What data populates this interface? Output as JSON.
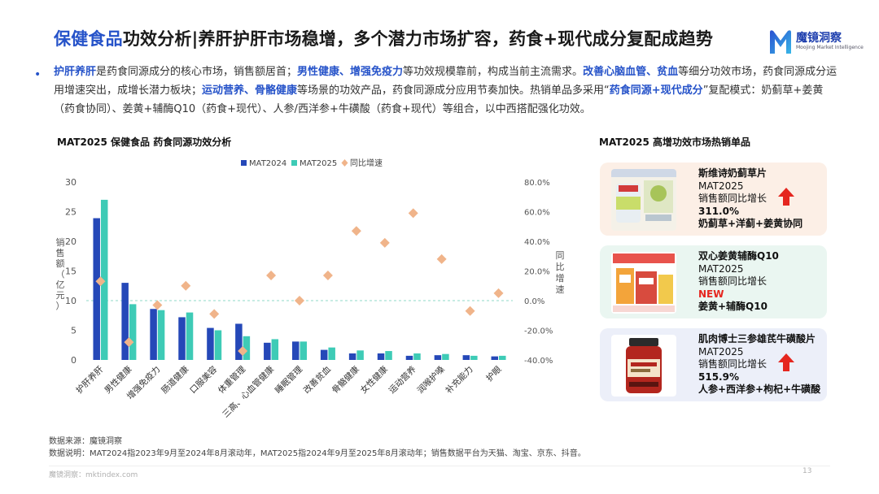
{
  "header": {
    "title_hl": "保健食品",
    "title_rest": "功效分析|养肝护肝市场稳增，多个潜力市场扩容，药食+现代成分复配成趋势",
    "logo_cn": "魔镜洞察",
    "logo_en": "Moojing Market Intelligence"
  },
  "summary": {
    "segments": [
      {
        "t": "护肝养肝",
        "hl": true
      },
      {
        "t": "是药食同源成分的核心市场，销售额居首；",
        "hl": false
      },
      {
        "t": "男性健康、增强免疫力",
        "hl": true
      },
      {
        "t": "等功效规模靠前，构成当前主流需求。",
        "hl": false
      },
      {
        "t": "改善心脑血管、贫血",
        "hl": true
      },
      {
        "t": "等细分功效市场，药食同源成分运用增速突出，成增长潜力板块；",
        "hl": false
      },
      {
        "t": "运动营养、骨骼健康",
        "hl": true
      },
      {
        "t": "等场景的功效产品，药食同源成分应用节奏加快。热销单品多采用“",
        "hl": false
      },
      {
        "t": "药食同源+现代成分",
        "hl": true
      },
      {
        "t": "”复配模式：奶蓟草+姜黄（药食协同）、姜黄+辅酶Q10（药食+现代）、人参/西洋参+牛磺酸（药食+现代）等组合，以中西搭配强化功效。",
        "hl": false
      }
    ]
  },
  "chart_title": "MAT2025 保健食品 药食同源功效分析",
  "right_title": "MAT2025 高增功效市场热销单品",
  "chart_data": {
    "type": "bar",
    "categories": [
      "护肝养肝",
      "男性健康",
      "增强免疫力",
      "肠道健康",
      "口服美容",
      "体重管理",
      "三高、心血管健康",
      "睡眠管理",
      "改善贫血",
      "骨骼健康",
      "女性健康",
      "运动营养",
      "润喉护嗓",
      "补充能力",
      "护眼"
    ],
    "series": [
      {
        "name": "MAT2024",
        "type": "bar",
        "axis": "left",
        "color": "#2548b8",
        "values": [
          23.9,
          13.0,
          8.6,
          7.2,
          5.4,
          6.1,
          2.9,
          3.1,
          1.7,
          1.1,
          1.1,
          0.7,
          0.8,
          0.8,
          0.6
        ]
      },
      {
        "name": "MAT2025",
        "type": "bar",
        "axis": "left",
        "color": "#3ecbb6",
        "values": [
          27.0,
          9.4,
          8.4,
          8.0,
          5.0,
          4.0,
          3.5,
          3.1,
          2.1,
          1.6,
          1.5,
          1.1,
          1.0,
          0.7,
          0.7
        ]
      },
      {
        "name": "同比增速",
        "type": "scatter",
        "axis": "right",
        "color": "#f0b48a",
        "values": [
          13.0,
          -28.0,
          -3.0,
          10.0,
          -9.0,
          -34.0,
          17.0,
          0.0,
          17.0,
          47.0,
          39.0,
          59.0,
          28.0,
          -7.0,
          5.0
        ]
      }
    ],
    "ylabel": "销售额（亿元）",
    "y2label": "同比增速",
    "ylim": [
      0,
      30
    ],
    "yticks": [
      0,
      5,
      10,
      15,
      20,
      25,
      30
    ],
    "y2lim": [
      -40,
      80
    ],
    "y2ticks": [
      "-40.0%",
      "-20.0%",
      "0.0%",
      "20.0%",
      "40.0%",
      "60.0%",
      "80.0%"
    ],
    "legend": "top",
    "grid": false,
    "zero_line_color": "#8fd8c8"
  },
  "products": [
    {
      "name": "斯维诗奶蓟草片",
      "l1": "MAT2025",
      "l2": "销售额同比增长",
      "value": "311.0%",
      "combo": "奶蓟草+洋蓟+姜黄协同",
      "arrow": true
    },
    {
      "name": "双心姜黄辅酶Q10",
      "l1": "MAT2025",
      "l2": "销售额同比增长",
      "value": "NEW",
      "combo": "姜黄+辅酶Q10",
      "arrow": false
    },
    {
      "name": "肌肉博士三参雄芪牛磺酸片",
      "l1": "MAT2025",
      "l2": "销售额同比增长",
      "value": "515.9%",
      "combo": "人参+西洋参+枸杞+牛磺酸",
      "arrow": true
    }
  ],
  "source": {
    "line1": "数据来源：魔镜洞察",
    "line2": "数据说明：MAT2024指2023年9月至2024年8月滚动年，MAT2025指2024年9月至2025年8月滚动年；销售数据平台为天猫、淘宝、京东、抖音。"
  },
  "footer": {
    "site": "魔镜洞察：mktindex.com",
    "page": "13"
  },
  "colors": {
    "accent": "#2653c9",
    "up_arrow": "#e5261f",
    "new": "#e5261f"
  }
}
